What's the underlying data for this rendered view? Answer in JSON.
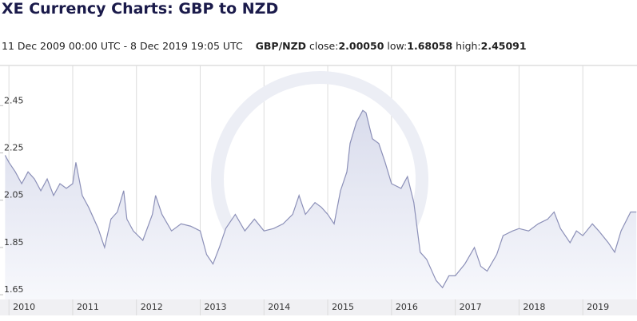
{
  "chart_data": {
    "type": "line",
    "title": "XE Currency Charts: GBP to NZD",
    "header": {
      "range": "11 Dec 2009 00:00 UTC - 8 Dec 2019 19:05 UTC",
      "pair": "GBP/NZD",
      "close_label": "close:",
      "close": "2.00050",
      "low_label": "low:",
      "low": "1.68058",
      "high_label": "high:",
      "high": "2.45091"
    },
    "x": [
      2009.94,
      2010.0,
      2010.1,
      2010.2,
      2010.3,
      2010.4,
      2010.5,
      2010.6,
      2010.7,
      2010.8,
      2010.9,
      2011.0,
      2011.05,
      2011.15,
      2011.25,
      2011.4,
      2011.5,
      2011.6,
      2011.7,
      2011.8,
      2011.85,
      2011.95,
      2012.1,
      2012.25,
      2012.3,
      2012.4,
      2012.55,
      2012.7,
      2012.85,
      2013.0,
      2013.1,
      2013.2,
      2013.3,
      2013.4,
      2013.55,
      2013.7,
      2013.85,
      2014.0,
      2014.15,
      2014.3,
      2014.45,
      2014.55,
      2014.65,
      2014.8,
      2014.9,
      2015.0,
      2015.1,
      2015.2,
      2015.3,
      2015.35,
      2015.45,
      2015.55,
      2015.6,
      2015.7,
      2015.8,
      2015.9,
      2016.0,
      2016.15,
      2016.25,
      2016.35,
      2016.45,
      2016.55,
      2016.7,
      2016.8,
      2016.9,
      2017.0,
      2017.15,
      2017.3,
      2017.4,
      2017.5,
      2017.65,
      2017.75,
      2017.9,
      2018.0,
      2018.15,
      2018.3,
      2018.45,
      2018.55,
      2018.65,
      2018.8,
      2018.9,
      2019.0,
      2019.15,
      2019.25,
      2019.4,
      2019.5,
      2019.6,
      2019.75,
      2019.84
    ],
    "series": [
      {
        "name": "GBP/NZD",
        "color": "#8c90b8",
        "values": [
          2.24,
          2.21,
          2.17,
          2.12,
          2.17,
          2.14,
          2.09,
          2.14,
          2.07,
          2.12,
          2.1,
          2.12,
          2.21,
          2.07,
          2.02,
          1.93,
          1.85,
          1.97,
          2.0,
          2.09,
          1.97,
          1.92,
          1.88,
          1.99,
          2.07,
          1.99,
          1.92,
          1.95,
          1.94,
          1.92,
          1.82,
          1.78,
          1.85,
          1.93,
          1.99,
          1.92,
          1.97,
          1.92,
          1.93,
          1.95,
          1.99,
          2.07,
          1.99,
          2.04,
          2.02,
          1.99,
          1.95,
          2.09,
          2.17,
          2.29,
          2.38,
          2.43,
          2.42,
          2.31,
          2.29,
          2.21,
          2.12,
          2.1,
          2.15,
          2.04,
          1.83,
          1.8,
          1.71,
          1.68,
          1.73,
          1.73,
          1.78,
          1.85,
          1.77,
          1.75,
          1.82,
          1.9,
          1.92,
          1.93,
          1.92,
          1.95,
          1.97,
          2.0,
          1.93,
          1.87,
          1.92,
          1.9,
          1.95,
          1.92,
          1.87,
          1.83,
          1.92,
          2.0,
          2.0
        ]
      }
    ],
    "xlim": [
      2009.86,
      2019.85
    ],
    "ylim": [
      1.63,
      2.62
    ],
    "xticks": [
      2010,
      2011,
      2012,
      2013,
      2014,
      2015,
      2016,
      2017,
      2018,
      2019
    ],
    "yticks": [
      1.65,
      1.85,
      2.05,
      2.25,
      2.45
    ],
    "grid": true
  }
}
